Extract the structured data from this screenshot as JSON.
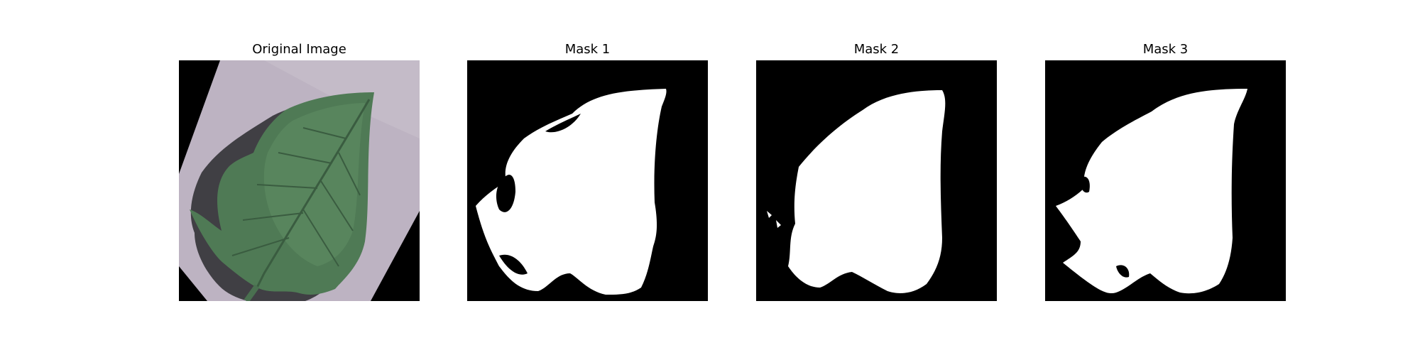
{
  "figure": {
    "panels": [
      {
        "id": "original",
        "title": "Original Image",
        "content": "leaf-photo"
      },
      {
        "id": "mask-1",
        "title": "Mask 1",
        "content": "binary-mask"
      },
      {
        "id": "mask-2",
        "title": "Mask 2",
        "content": "binary-mask"
      },
      {
        "id": "mask-3",
        "title": "Mask 3",
        "content": "binary-mask"
      }
    ]
  },
  "colors": {
    "background": "#ffffff",
    "mask_background": "#000000",
    "mask_foreground": "#ffffff",
    "leaf_green": "#4f7a55",
    "paper_lavender": "#bdb3c2",
    "shadow": "#2a2a2e"
  }
}
